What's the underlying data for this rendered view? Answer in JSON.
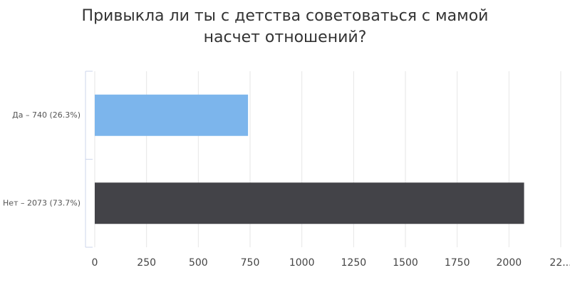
{
  "chart_data": {
    "type": "bar",
    "orientation": "horizontal",
    "title": "Привыкла ли ты с детства советоваться с мамой насчет отношений?",
    "categories": [
      "Да – 740 (26.3%)",
      "Нет – 2073 (73.7%)"
    ],
    "values": [
      740,
      2073
    ],
    "colors": [
      "#7cb5ec",
      "#434348"
    ],
    "xlim": [
      0,
      2250
    ],
    "xticks": [
      0,
      250,
      500,
      750,
      1000,
      1250,
      1500,
      1750,
      2000,
      {
        "value": 2250,
        "label": "22..."
      }
    ],
    "grid": true
  }
}
